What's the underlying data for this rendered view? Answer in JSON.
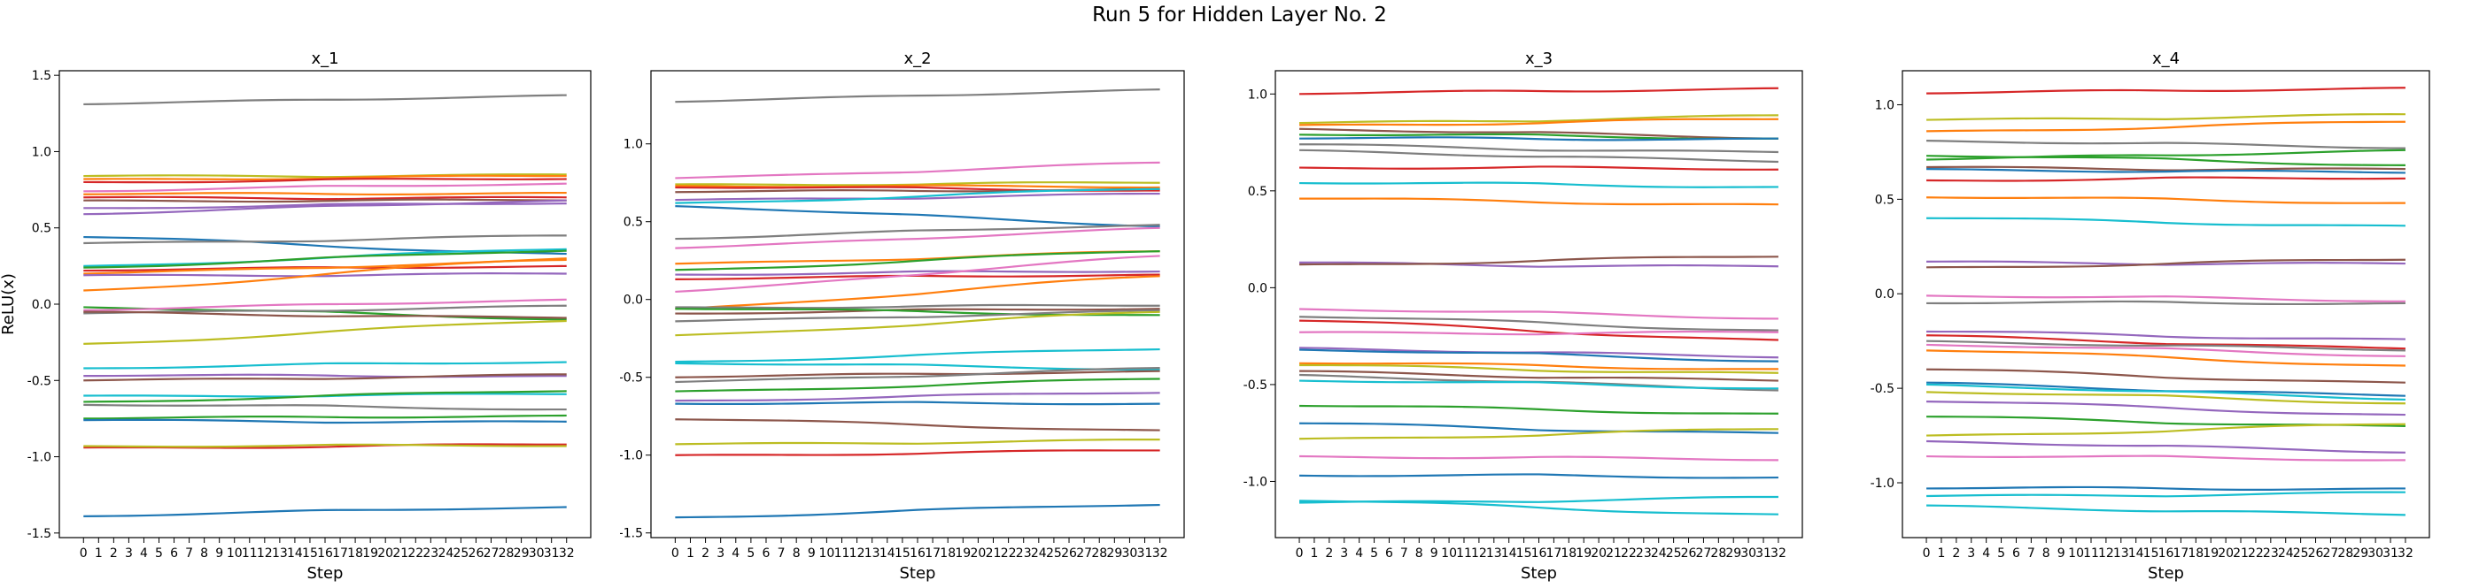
{
  "figure": {
    "title": "Run 5 for Hidden Layer No. 2"
  },
  "palette": [
    "#1f77b4",
    "#ff7f0e",
    "#2ca02c",
    "#d62728",
    "#9467bd",
    "#8c564b",
    "#e377c2",
    "#7f7f7f",
    "#bcbd22",
    "#17becf"
  ],
  "chart_data": [
    {
      "type": "line",
      "title": "x_1",
      "xlabel": "Step",
      "ylabel": "ReLU(x)",
      "x": [
        0,
        1,
        2,
        3,
        4,
        5,
        6,
        7,
        8,
        9,
        10,
        11,
        12,
        13,
        14,
        15,
        16,
        17,
        18,
        19,
        20,
        21,
        22,
        23,
        24,
        25,
        26,
        27,
        28,
        29,
        30,
        31,
        32
      ],
      "xlim": [
        -1.6,
        33.6
      ],
      "ylim": [
        -1.53,
        1.53
      ],
      "yticks": [
        -1.5,
        -1.0,
        -0.5,
        0.0,
        0.5,
        1.0,
        1.5
      ],
      "grid": false,
      "series": [
        {
          "start": 1.31,
          "end": 1.37,
          "color": "#7f7f7f"
        },
        {
          "start": 0.84,
          "end": 0.85,
          "color": "#bcbd22"
        },
        {
          "start": 0.82,
          "end": 0.84,
          "color": "#ff7f0e"
        },
        {
          "start": 0.8,
          "end": 0.82,
          "color": "#d62728"
        },
        {
          "start": 0.74,
          "end": 0.79,
          "color": "#e377c2"
        },
        {
          "start": 0.72,
          "end": 0.73,
          "color": "#ff7f0e"
        },
        {
          "start": 0.7,
          "end": 0.7,
          "color": "#d62728"
        },
        {
          "start": 0.68,
          "end": 0.68,
          "color": "#8c564b"
        },
        {
          "start": 0.63,
          "end": 0.66,
          "color": "#9467bd"
        },
        {
          "start": 0.59,
          "end": 0.68,
          "color": "#9467bd"
        },
        {
          "start": 0.44,
          "end": 0.33,
          "color": "#1f77b4"
        },
        {
          "start": 0.4,
          "end": 0.45,
          "color": "#7f7f7f"
        },
        {
          "start": 0.25,
          "end": 0.36,
          "color": "#17becf"
        },
        {
          "start": 0.24,
          "end": 0.35,
          "color": "#2ca02c"
        },
        {
          "start": 0.22,
          "end": 0.25,
          "color": "#d62728"
        },
        {
          "start": 0.2,
          "end": 0.29,
          "color": "#ff7f0e"
        },
        {
          "start": 0.19,
          "end": 0.2,
          "color": "#9467bd"
        },
        {
          "start": 0.09,
          "end": 0.3,
          "color": "#ff7f0e"
        },
        {
          "start": -0.02,
          "end": -0.1,
          "color": "#2ca02c"
        },
        {
          "start": -0.04,
          "end": 0.03,
          "color": "#e377c2"
        },
        {
          "start": -0.06,
          "end": -0.01,
          "color": "#7f7f7f"
        },
        {
          "start": -0.05,
          "end": -0.09,
          "color": "#8c564b"
        },
        {
          "start": -0.26,
          "end": -0.11,
          "color": "#bcbd22"
        },
        {
          "start": -0.42,
          "end": -0.38,
          "color": "#17becf"
        },
        {
          "start": -0.47,
          "end": -0.47,
          "color": "#9467bd"
        },
        {
          "start": -0.5,
          "end": -0.46,
          "color": "#8c564b"
        },
        {
          "start": -0.6,
          "end": -0.59,
          "color": "#17becf"
        },
        {
          "start": -0.64,
          "end": -0.57,
          "color": "#2ca02c"
        },
        {
          "start": -0.66,
          "end": -0.69,
          "color": "#7f7f7f"
        },
        {
          "start": -0.75,
          "end": -0.73,
          "color": "#2ca02c"
        },
        {
          "start": -0.76,
          "end": -0.77,
          "color": "#1f77b4"
        },
        {
          "start": -0.94,
          "end": -0.92,
          "color": "#d62728"
        },
        {
          "start": -0.93,
          "end": -0.93,
          "color": "#bcbd22"
        },
        {
          "start": -1.39,
          "end": -1.33,
          "color": "#1f77b4"
        }
      ]
    },
    {
      "type": "line",
      "title": "x_2",
      "xlabel": "Step",
      "ylabel": "ReLU(x)",
      "x": [
        0,
        1,
        2,
        3,
        4,
        5,
        6,
        7,
        8,
        9,
        10,
        11,
        12,
        13,
        14,
        15,
        16,
        17,
        18,
        19,
        20,
        21,
        22,
        23,
        24,
        25,
        26,
        27,
        28,
        29,
        30,
        31,
        32
      ],
      "xlim": [
        -1.6,
        33.6
      ],
      "ylim": [
        -1.53,
        1.47
      ],
      "yticks": [
        -1.5,
        -1.0,
        -0.5,
        0.0,
        0.5,
        1.0
      ],
      "grid": false,
      "series": [
        {
          "start": 1.27,
          "end": 1.35,
          "color": "#7f7f7f"
        },
        {
          "start": 0.78,
          "end": 0.88,
          "color": "#e377c2"
        },
        {
          "start": 0.74,
          "end": 0.75,
          "color": "#bcbd22"
        },
        {
          "start": 0.73,
          "end": 0.72,
          "color": "#ff7f0e"
        },
        {
          "start": 0.72,
          "end": 0.7,
          "color": "#d62728"
        },
        {
          "start": 0.69,
          "end": 0.71,
          "color": "#8c564b"
        },
        {
          "start": 0.64,
          "end": 0.68,
          "color": "#9467bd"
        },
        {
          "start": 0.62,
          "end": 0.71,
          "color": "#17becf"
        },
        {
          "start": 0.6,
          "end": 0.47,
          "color": "#1f77b4"
        },
        {
          "start": 0.39,
          "end": 0.48,
          "color": "#7f7f7f"
        },
        {
          "start": 0.33,
          "end": 0.46,
          "color": "#e377c2"
        },
        {
          "start": 0.23,
          "end": 0.31,
          "color": "#ff7f0e"
        },
        {
          "start": 0.19,
          "end": 0.31,
          "color": "#2ca02c"
        },
        {
          "start": 0.16,
          "end": 0.18,
          "color": "#9467bd"
        },
        {
          "start": 0.13,
          "end": 0.16,
          "color": "#d62728"
        },
        {
          "start": 0.05,
          "end": 0.28,
          "color": "#e377c2"
        },
        {
          "start": -0.06,
          "end": 0.15,
          "color": "#ff7f0e"
        },
        {
          "start": -0.05,
          "end": -0.04,
          "color": "#7f7f7f"
        },
        {
          "start": -0.09,
          "end": -0.06,
          "color": "#8c564b"
        },
        {
          "start": -0.06,
          "end": -0.1,
          "color": "#2ca02c"
        },
        {
          "start": -0.14,
          "end": -0.07,
          "color": "#7f7f7f"
        },
        {
          "start": -0.23,
          "end": -0.08,
          "color": "#bcbd22"
        },
        {
          "start": -0.4,
          "end": -0.32,
          "color": "#17becf"
        },
        {
          "start": -0.41,
          "end": -0.45,
          "color": "#17becf"
        },
        {
          "start": -0.5,
          "end": -0.46,
          "color": "#8c564b"
        },
        {
          "start": -0.53,
          "end": -0.44,
          "color": "#7f7f7f"
        },
        {
          "start": -0.59,
          "end": -0.51,
          "color": "#2ca02c"
        },
        {
          "start": -0.65,
          "end": -0.6,
          "color": "#9467bd"
        },
        {
          "start": -0.67,
          "end": -0.67,
          "color": "#1f77b4"
        },
        {
          "start": -0.77,
          "end": -0.84,
          "color": "#8c564b"
        },
        {
          "start": -0.93,
          "end": -0.9,
          "color": "#bcbd22"
        },
        {
          "start": -1.0,
          "end": -0.97,
          "color": "#d62728"
        },
        {
          "start": -1.4,
          "end": -1.32,
          "color": "#1f77b4"
        }
      ]
    },
    {
      "type": "line",
      "title": "x_3",
      "xlabel": "Step",
      "ylabel": "ReLU(x)",
      "x": [
        0,
        1,
        2,
        3,
        4,
        5,
        6,
        7,
        8,
        9,
        10,
        11,
        12,
        13,
        14,
        15,
        16,
        17,
        18,
        19,
        20,
        21,
        22,
        23,
        24,
        25,
        26,
        27,
        28,
        29,
        30,
        31,
        32
      ],
      "xlim": [
        -1.6,
        33.6
      ],
      "ylim": [
        -1.29,
        1.12
      ],
      "yticks": [
        -1.0,
        -0.5,
        0.0,
        0.5,
        1.0
      ],
      "grid": false,
      "series": [
        {
          "start": 1.0,
          "end": 1.03,
          "color": "#d62728"
        },
        {
          "start": 0.85,
          "end": 0.89,
          "color": "#bcbd22"
        },
        {
          "start": 0.84,
          "end": 0.87,
          "color": "#ff7f0e"
        },
        {
          "start": 0.82,
          "end": 0.77,
          "color": "#8c564b"
        },
        {
          "start": 0.79,
          "end": 0.77,
          "color": "#2ca02c"
        },
        {
          "start": 0.77,
          "end": 0.77,
          "color": "#1f77b4"
        },
        {
          "start": 0.74,
          "end": 0.7,
          "color": "#7f7f7f"
        },
        {
          "start": 0.71,
          "end": 0.65,
          "color": "#7f7f7f"
        },
        {
          "start": 0.62,
          "end": 0.61,
          "color": "#d62728"
        },
        {
          "start": 0.54,
          "end": 0.52,
          "color": "#17becf"
        },
        {
          "start": 0.46,
          "end": 0.43,
          "color": "#ff7f0e"
        },
        {
          "start": 0.13,
          "end": 0.11,
          "color": "#9467bd"
        },
        {
          "start": 0.12,
          "end": 0.16,
          "color": "#8c564b"
        },
        {
          "start": -0.11,
          "end": -0.16,
          "color": "#e377c2"
        },
        {
          "start": -0.15,
          "end": -0.22,
          "color": "#7f7f7f"
        },
        {
          "start": -0.17,
          "end": -0.27,
          "color": "#d62728"
        },
        {
          "start": -0.23,
          "end": -0.23,
          "color": "#e377c2"
        },
        {
          "start": -0.31,
          "end": -0.36,
          "color": "#9467bd"
        },
        {
          "start": -0.32,
          "end": -0.38,
          "color": "#1f77b4"
        },
        {
          "start": -0.39,
          "end": -0.42,
          "color": "#ff7f0e"
        },
        {
          "start": -0.4,
          "end": -0.44,
          "color": "#bcbd22"
        },
        {
          "start": -0.43,
          "end": -0.48,
          "color": "#8c564b"
        },
        {
          "start": -0.45,
          "end": -0.53,
          "color": "#7f7f7f"
        },
        {
          "start": -0.48,
          "end": -0.52,
          "color": "#17becf"
        },
        {
          "start": -0.61,
          "end": -0.65,
          "color": "#2ca02c"
        },
        {
          "start": -0.7,
          "end": -0.75,
          "color": "#1f77b4"
        },
        {
          "start": -0.78,
          "end": -0.73,
          "color": "#bcbd22"
        },
        {
          "start": -0.87,
          "end": -0.89,
          "color": "#e377c2"
        },
        {
          "start": -0.97,
          "end": -0.98,
          "color": "#1f77b4"
        },
        {
          "start": -1.1,
          "end": -1.17,
          "color": "#17becf"
        },
        {
          "start": -1.11,
          "end": -1.08,
          "color": "#17becf"
        }
      ]
    },
    {
      "type": "line",
      "title": "x_4",
      "xlabel": "Step",
      "ylabel": "ReLU(x)",
      "x": [
        0,
        1,
        2,
        3,
        4,
        5,
        6,
        7,
        8,
        9,
        10,
        11,
        12,
        13,
        14,
        15,
        16,
        17,
        18,
        19,
        20,
        21,
        22,
        23,
        24,
        25,
        26,
        27,
        28,
        29,
        30,
        31,
        32
      ],
      "xlim": [
        -1.6,
        33.6
      ],
      "ylim": [
        -1.29,
        1.18
      ],
      "yticks": [
        -1.0,
        -0.5,
        0.0,
        0.5,
        1.0
      ],
      "grid": false,
      "series": [
        {
          "start": 1.06,
          "end": 1.09,
          "color": "#d62728"
        },
        {
          "start": 0.92,
          "end": 0.95,
          "color": "#bcbd22"
        },
        {
          "start": 0.86,
          "end": 0.91,
          "color": "#ff7f0e"
        },
        {
          "start": 0.81,
          "end": 0.77,
          "color": "#7f7f7f"
        },
        {
          "start": 0.73,
          "end": 0.68,
          "color": "#2ca02c"
        },
        {
          "start": 0.71,
          "end": 0.76,
          "color": "#2ca02c"
        },
        {
          "start": 0.67,
          "end": 0.66,
          "color": "#8c564b"
        },
        {
          "start": 0.66,
          "end": 0.64,
          "color": "#1f77b4"
        },
        {
          "start": 0.6,
          "end": 0.61,
          "color": "#d62728"
        },
        {
          "start": 0.51,
          "end": 0.48,
          "color": "#ff7f0e"
        },
        {
          "start": 0.4,
          "end": 0.36,
          "color": "#17becf"
        },
        {
          "start": 0.17,
          "end": 0.16,
          "color": "#9467bd"
        },
        {
          "start": 0.14,
          "end": 0.18,
          "color": "#8c564b"
        },
        {
          "start": -0.01,
          "end": -0.04,
          "color": "#e377c2"
        },
        {
          "start": -0.05,
          "end": -0.05,
          "color": "#7f7f7f"
        },
        {
          "start": -0.2,
          "end": -0.24,
          "color": "#9467bd"
        },
        {
          "start": -0.22,
          "end": -0.29,
          "color": "#d62728"
        },
        {
          "start": -0.25,
          "end": -0.3,
          "color": "#7f7f7f"
        },
        {
          "start": -0.27,
          "end": -0.33,
          "color": "#e377c2"
        },
        {
          "start": -0.3,
          "end": -0.38,
          "color": "#ff7f0e"
        },
        {
          "start": -0.4,
          "end": -0.47,
          "color": "#8c564b"
        },
        {
          "start": -0.47,
          "end": -0.54,
          "color": "#1f77b4"
        },
        {
          "start": -0.48,
          "end": -0.56,
          "color": "#17becf"
        },
        {
          "start": -0.52,
          "end": -0.58,
          "color": "#bcbd22"
        },
        {
          "start": -0.57,
          "end": -0.64,
          "color": "#9467bd"
        },
        {
          "start": -0.65,
          "end": -0.7,
          "color": "#2ca02c"
        },
        {
          "start": -0.75,
          "end": -0.69,
          "color": "#bcbd22"
        },
        {
          "start": -0.78,
          "end": -0.84,
          "color": "#9467bd"
        },
        {
          "start": -0.86,
          "end": -0.88,
          "color": "#e377c2"
        },
        {
          "start": -1.03,
          "end": -1.03,
          "color": "#1f77b4"
        },
        {
          "start": -1.07,
          "end": -1.05,
          "color": "#17becf"
        },
        {
          "start": -1.12,
          "end": -1.17,
          "color": "#17becf"
        }
      ]
    }
  ]
}
